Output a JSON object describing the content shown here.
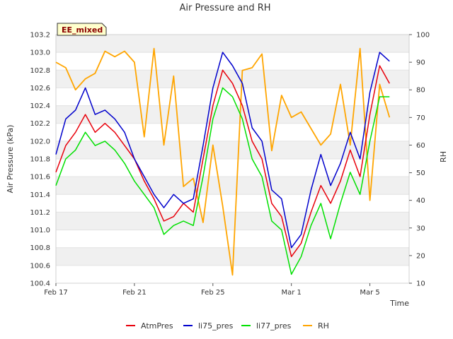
{
  "chart_data": {
    "type": "line",
    "title": "Air Pressure and RH",
    "badge": "EE_mixed",
    "xlabel": "Time",
    "ylabel": "Air Pressure (kPa)",
    "y2label": "RH",
    "x_ticks": [
      {
        "label": "Feb 17",
        "day": 0
      },
      {
        "label": "Feb 21",
        "day": 4
      },
      {
        "label": "Feb 25",
        "day": 8
      },
      {
        "label": "Mar 1",
        "day": 12
      },
      {
        "label": "Mar 5",
        "day": 16
      }
    ],
    "xlim_days": [
      0,
      18
    ],
    "ylim": [
      100.4,
      103.2
    ],
    "y_ticks": [
      "100.4",
      "100.6",
      "100.8",
      "101.0",
      "101.2",
      "101.4",
      "101.6",
      "101.8",
      "102.0",
      "102.2",
      "102.4",
      "102.6",
      "102.8",
      "103.0",
      "103.2"
    ],
    "y2lim": [
      10,
      100
    ],
    "y2_ticks": [
      "10",
      "20",
      "30",
      "40",
      "50",
      "60",
      "70",
      "80",
      "90",
      "100"
    ],
    "grid": true,
    "legend_position": "bottom-center",
    "x": [
      0.0,
      0.5,
      1.0,
      1.5,
      2.0,
      2.5,
      3.0,
      3.5,
      4.0,
      4.5,
      5.0,
      5.5,
      6.0,
      6.5,
      7.0,
      7.5,
      8.0,
      8.5,
      9.0,
      9.5,
      10.0,
      10.5,
      11.0,
      11.5,
      12.0,
      12.5,
      13.0,
      13.5,
      14.0,
      14.5,
      15.0,
      15.5,
      16.0,
      16.5,
      17.0
    ],
    "series": [
      {
        "name": "AtmPres",
        "axis": "left",
        "color": "#e8000b",
        "values": [
          101.65,
          101.95,
          102.1,
          102.3,
          102.1,
          102.2,
          102.1,
          101.95,
          101.8,
          101.55,
          101.35,
          101.1,
          101.15,
          101.3,
          101.2,
          101.8,
          102.4,
          102.8,
          102.65,
          102.4,
          102.0,
          101.8,
          101.3,
          101.15,
          100.7,
          100.85,
          101.2,
          101.5,
          101.3,
          101.55,
          101.9,
          101.6,
          102.3,
          102.85,
          102.65
        ]
      },
      {
        "name": "li75_pres",
        "axis": "left",
        "color": "#0000cc",
        "values": [
          101.85,
          102.25,
          102.35,
          102.6,
          102.3,
          102.35,
          102.25,
          102.1,
          101.8,
          101.6,
          101.4,
          101.25,
          101.4,
          101.3,
          101.35,
          101.95,
          102.6,
          103.0,
          102.85,
          102.65,
          102.15,
          102.0,
          101.45,
          101.35,
          100.8,
          100.95,
          101.45,
          101.85,
          101.5,
          101.75,
          102.1,
          101.8,
          102.55,
          103.0,
          102.9
        ]
      },
      {
        "name": "li77_pres",
        "axis": "left",
        "color": "#00e000",
        "values": [
          101.5,
          101.8,
          101.9,
          102.1,
          101.95,
          102.0,
          101.9,
          101.75,
          101.55,
          101.4,
          101.25,
          100.95,
          101.05,
          101.1,
          101.05,
          101.6,
          102.25,
          102.6,
          102.5,
          102.25,
          101.8,
          101.6,
          101.1,
          101.0,
          100.5,
          100.7,
          101.05,
          101.3,
          100.9,
          101.3,
          101.65,
          101.4,
          102.0,
          102.5,
          102.5
        ]
      },
      {
        "name": "RH",
        "axis": "right",
        "color": "#ffa500",
        "values": [
          90,
          88,
          80,
          84,
          86,
          94,
          92,
          94,
          90,
          63,
          95,
          60,
          85,
          45,
          48,
          32,
          60,
          38,
          13,
          87,
          88,
          93,
          58,
          78,
          70,
          72,
          66,
          60,
          64,
          82,
          60,
          95,
          40,
          82,
          70
        ]
      }
    ]
  }
}
